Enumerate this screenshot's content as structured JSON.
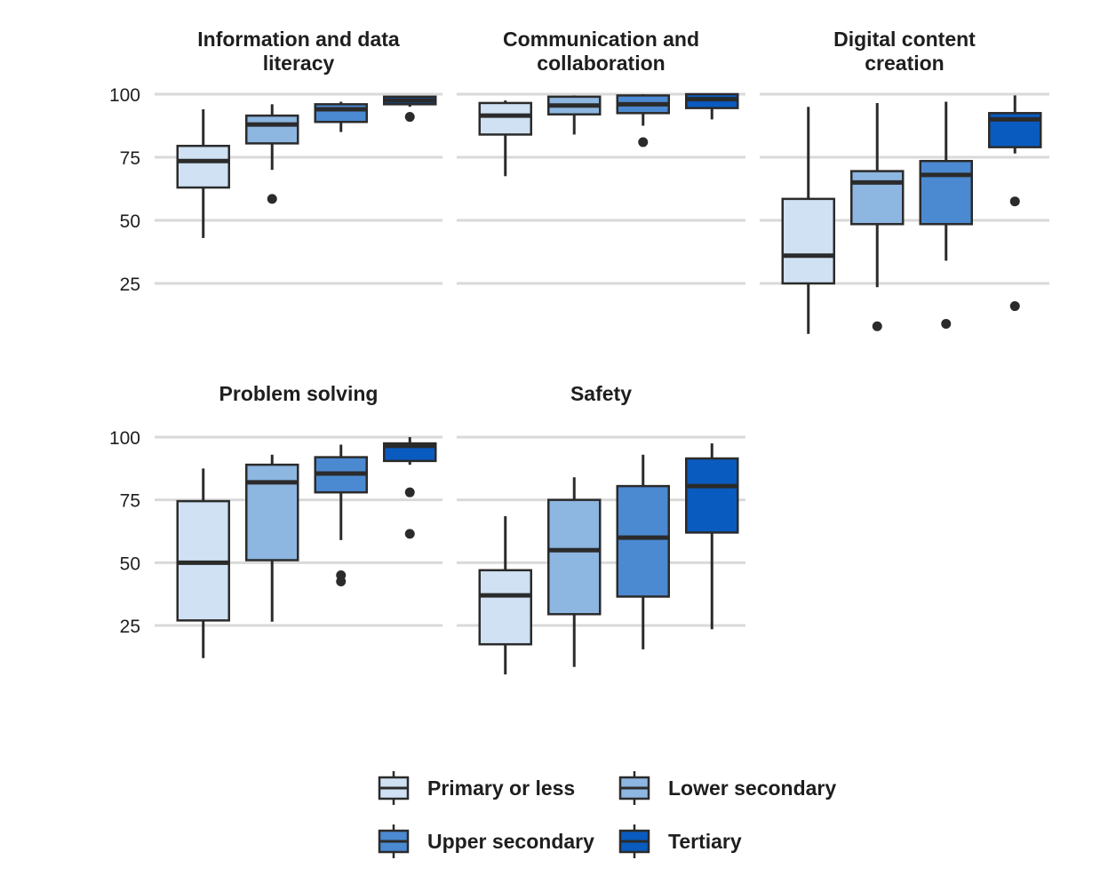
{
  "colors": {
    "primary_or_less": "#cfe1f3",
    "lower_secondary": "#8db6e1",
    "upper_secondary": "#4b8ad1",
    "tertiary": "#0a5bbf",
    "stroke": "#2b2b2b",
    "grid": "#d9d9d9"
  },
  "chart_data": {
    "type": "boxplot",
    "grid": "horizontal",
    "legend_position": "bottom",
    "yticks": [
      25,
      50,
      75,
      100
    ],
    "ylim": [
      5,
      100
    ],
    "series": [
      {
        "name": "Primary or less",
        "color_key": "primary_or_less"
      },
      {
        "name": "Lower secondary",
        "color_key": "lower_secondary"
      },
      {
        "name": "Upper secondary",
        "color_key": "upper_secondary"
      },
      {
        "name": "Tertiary",
        "color_key": "tertiary"
      }
    ],
    "panels": [
      {
        "title_lines": [
          "Information and data",
          "literacy"
        ],
        "boxes": [
          {
            "min": 43,
            "q1": 63,
            "median": 73.5,
            "q3": 79.5,
            "max": 94,
            "outliers": []
          },
          {
            "min": 70,
            "q1": 80.5,
            "median": 88,
            "q3": 91.5,
            "max": 96,
            "outliers": [
              58.5
            ]
          },
          {
            "min": 85,
            "q1": 89,
            "median": 94,
            "q3": 96,
            "max": 97,
            "outliers": []
          },
          {
            "min": 95,
            "q1": 96,
            "median": 97.5,
            "q3": 99,
            "max": 99,
            "outliers": [
              91
            ]
          }
        ]
      },
      {
        "title_lines": [
          "Communication and",
          "collaboration"
        ],
        "boxes": [
          {
            "min": 67.5,
            "q1": 84,
            "median": 91.5,
            "q3": 96.5,
            "max": 97.5,
            "outliers": []
          },
          {
            "min": 84,
            "q1": 92,
            "median": 95.5,
            "q3": 99,
            "max": 99.5,
            "outliers": []
          },
          {
            "min": 87.5,
            "q1": 92.5,
            "median": 96,
            "q3": 99.5,
            "max": 100,
            "outliers": [
              81
            ]
          },
          {
            "min": 90,
            "q1": 94.5,
            "median": 98,
            "q3": 100,
            "max": 100,
            "outliers": []
          }
        ]
      },
      {
        "title_lines": [
          "Digital content",
          "creation"
        ],
        "boxes": [
          {
            "min": 5,
            "q1": 25,
            "median": 36,
            "q3": 58.5,
            "max": 95,
            "outliers": []
          },
          {
            "min": 23.5,
            "q1": 48.5,
            "median": 65,
            "q3": 69.5,
            "max": 96.5,
            "outliers": [
              8
            ]
          },
          {
            "min": 34,
            "q1": 48.5,
            "median": 68,
            "q3": 73.5,
            "max": 97,
            "outliers": [
              9
            ]
          },
          {
            "min": 76.5,
            "q1": 79,
            "median": 90,
            "q3": 92.5,
            "max": 99.5,
            "outliers": [
              57.5,
              16
            ]
          }
        ]
      },
      {
        "title_lines": [
          "Problem solving"
        ],
        "boxes": [
          {
            "min": 12,
            "q1": 27,
            "median": 50,
            "q3": 74.5,
            "max": 87.5,
            "outliers": []
          },
          {
            "min": 26.5,
            "q1": 51,
            "median": 82,
            "q3": 89,
            "max": 93,
            "outliers": []
          },
          {
            "min": 59,
            "q1": 78,
            "median": 85.5,
            "q3": 92,
            "max": 97,
            "outliers": [
              45,
              42.5
            ]
          },
          {
            "min": 89,
            "q1": 90.5,
            "median": 96.5,
            "q3": 97.5,
            "max": 100,
            "outliers": [
              78,
              61.5
            ]
          }
        ]
      },
      {
        "title_lines": [
          "Safety"
        ],
        "boxes": [
          {
            "min": 5.5,
            "q1": 17.5,
            "median": 37,
            "q3": 47,
            "max": 68.5,
            "outliers": []
          },
          {
            "min": 8.5,
            "q1": 29.5,
            "median": 55,
            "q3": 75,
            "max": 84,
            "outliers": []
          },
          {
            "min": 15.5,
            "q1": 36.5,
            "median": 60,
            "q3": 80.5,
            "max": 93,
            "outliers": []
          },
          {
            "min": 23.5,
            "q1": 62,
            "median": 80.5,
            "q3": 91.5,
            "max": 97.5,
            "outliers": []
          }
        ]
      }
    ]
  }
}
